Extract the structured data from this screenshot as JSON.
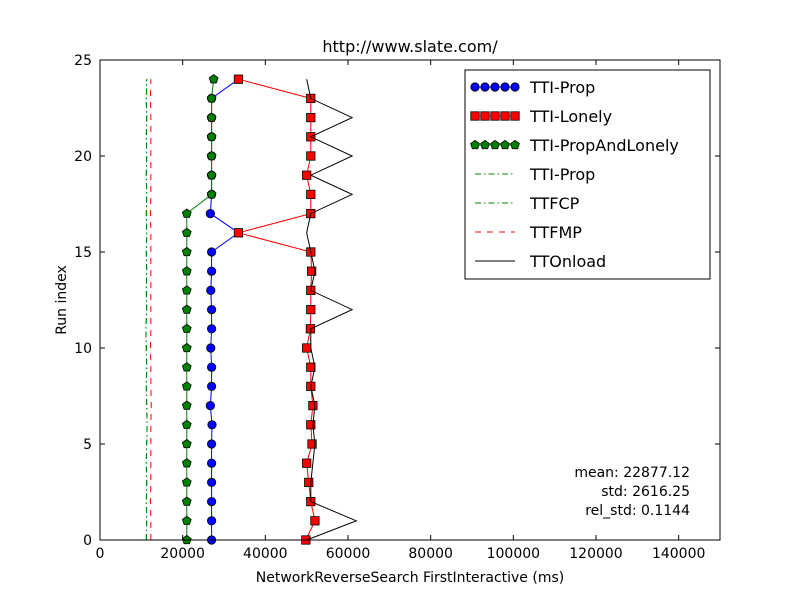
{
  "chart_data": {
    "type": "line",
    "title": "http://www.slate.com/",
    "xlabel": "NetworkReverseSearch FirstInteractive (ms)",
    "ylabel": "Run index",
    "xlim": [
      0,
      150000
    ],
    "ylim": [
      0,
      25
    ],
    "xticks": [
      0,
      20000,
      40000,
      60000,
      80000,
      100000,
      120000,
      140000
    ],
    "xtick_labels": [
      "0",
      "20000",
      "40000",
      "60000",
      "80000",
      "100000",
      "120000",
      "140000"
    ],
    "yticks": [
      0,
      5,
      10,
      15,
      20,
      25
    ],
    "ytick_labels": [
      "0",
      "5",
      "10",
      "15",
      "20",
      "25"
    ],
    "grid": false,
    "legend_position": "top-right",
    "series": [
      {
        "name": "TTI-Prop",
        "style": "marker-line",
        "marker": "circle",
        "color": "#0000ff",
        "x": [
          27000,
          27000,
          27000,
          27000,
          27000,
          27000,
          27100,
          26700,
          27000,
          27000,
          26800,
          27000,
          27000,
          26800,
          27000,
          27000,
          33500,
          26700,
          27000,
          27000,
          27000,
          27000,
          27000,
          27000,
          33500
        ],
        "y": [
          0,
          1,
          2,
          3,
          4,
          5,
          6,
          7,
          8,
          9,
          10,
          11,
          12,
          13,
          14,
          15,
          16,
          17,
          18,
          19,
          20,
          21,
          22,
          23,
          24
        ]
      },
      {
        "name": "TTI-Lonely",
        "style": "marker-line",
        "marker": "square",
        "color": "#ff0000",
        "x": [
          49800,
          52000,
          51000,
          50500,
          50000,
          51300,
          51000,
          51500,
          51000,
          51000,
          50000,
          50900,
          51000,
          51000,
          51200,
          51000,
          33500,
          51000,
          51000,
          50000,
          51000,
          51000,
          51000,
          51000,
          33500
        ],
        "y": [
          0,
          1,
          2,
          3,
          4,
          5,
          6,
          7,
          8,
          9,
          10,
          11,
          12,
          13,
          14,
          15,
          16,
          17,
          18,
          19,
          20,
          21,
          22,
          23,
          24
        ]
      },
      {
        "name": "TTI-PropAndLonely",
        "style": "marker-line",
        "marker": "pentagon",
        "color": "#008000",
        "x": [
          21000,
          21000,
          21000,
          21000,
          21000,
          21000,
          21000,
          21000,
          21000,
          21000,
          21000,
          21000,
          21000,
          21000,
          21000,
          21000,
          21000,
          21000,
          27000,
          27000,
          27000,
          27000,
          27000,
          27000,
          27500
        ],
        "y": [
          0,
          1,
          2,
          3,
          4,
          5,
          6,
          7,
          8,
          9,
          10,
          11,
          12,
          13,
          14,
          15,
          16,
          17,
          18,
          19,
          20,
          21,
          22,
          23,
          24
        ]
      },
      {
        "name": "TTI-Prop",
        "style": "dashdot",
        "color": "#008000",
        "x": [
          11200,
          11300,
          11200,
          11300,
          11200,
          11300,
          11400,
          11300,
          11200,
          11300,
          11200,
          11100,
          11300,
          11200,
          11300,
          11200,
          11300,
          11200,
          11300,
          11200,
          11300,
          11200,
          11300,
          11200,
          11300
        ],
        "y": [
          0,
          1,
          2,
          3,
          4,
          5,
          6,
          7,
          8,
          9,
          10,
          11,
          12,
          13,
          14,
          15,
          16,
          17,
          18,
          19,
          20,
          21,
          22,
          23,
          24
        ]
      },
      {
        "name": "TTFCP",
        "style": "dashdot",
        "color": "#008000",
        "x": [
          11200,
          11300,
          11200,
          11300,
          11200,
          11300,
          11400,
          11300,
          11200,
          11300,
          11200,
          11100,
          11300,
          11200,
          11300,
          11200,
          11300,
          11200,
          11300,
          11200,
          11300,
          11200,
          11300,
          11200,
          11300
        ],
        "y": [
          0,
          1,
          2,
          3,
          4,
          5,
          6,
          7,
          8,
          9,
          10,
          11,
          12,
          13,
          14,
          15,
          16,
          17,
          18,
          19,
          20,
          21,
          22,
          23,
          24
        ]
      },
      {
        "name": "TTFMP",
        "style": "dashed",
        "color": "#ff0000",
        "x": [
          12300,
          12300,
          12200,
          12300,
          12300,
          12300,
          12300,
          12400,
          12300,
          12300,
          12200,
          12300,
          12300,
          12300,
          12300,
          12300,
          12300,
          12200,
          12300,
          12300,
          12300,
          12300,
          12300,
          12200,
          12300
        ],
        "y": [
          0,
          1,
          2,
          3,
          4,
          5,
          6,
          7,
          8,
          9,
          10,
          11,
          12,
          13,
          14,
          15,
          16,
          17,
          18,
          19,
          20,
          21,
          22,
          23,
          24
        ]
      },
      {
        "name": "TTOnload",
        "style": "solid",
        "color": "#000000",
        "x": [
          50000,
          62000,
          51000,
          51000,
          51500,
          52000,
          51500,
          52000,
          51000,
          52000,
          51000,
          51000,
          61000,
          51000,
          52000,
          51000,
          50000,
          51000,
          61000,
          51000,
          61000,
          51000,
          61000,
          51000,
          50000
        ],
        "y": [
          0,
          1,
          2,
          3,
          4,
          5,
          6,
          7,
          8,
          9,
          10,
          11,
          12,
          13,
          14,
          15,
          16,
          17,
          18,
          19,
          20,
          21,
          22,
          23,
          24
        ]
      }
    ],
    "annotations": [
      "mean: 22877.12",
      "std: 2616.25",
      "rel_std: 0.1144"
    ]
  }
}
